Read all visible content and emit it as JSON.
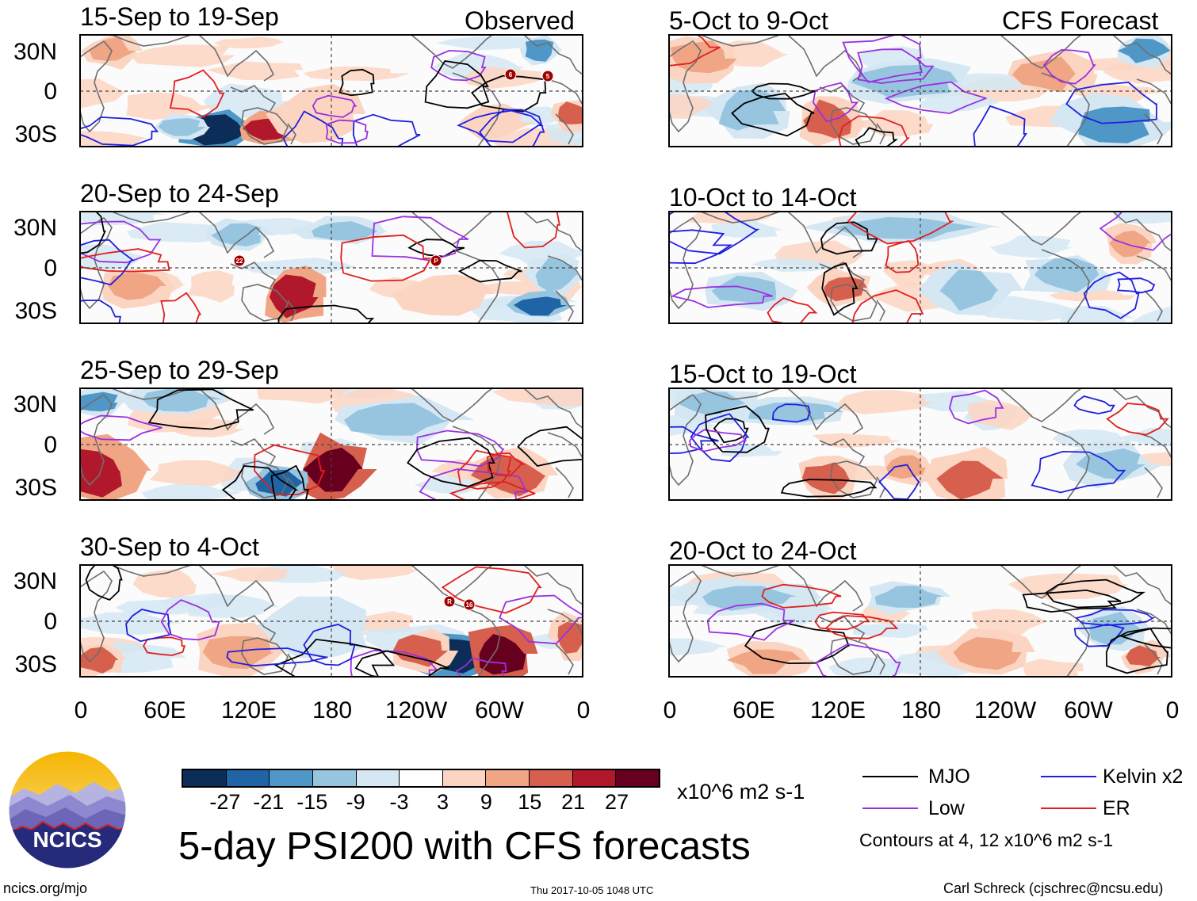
{
  "source_labels": {
    "observed": "Observed",
    "forecast": "CFS Forecast"
  },
  "panels_observed": [
    "15-Sep to 19-Sep",
    "20-Sep to 24-Sep",
    "25-Sep to 29-Sep",
    "30-Sep to 4-Oct"
  ],
  "panels_forecast": [
    "5-Oct to 9-Oct",
    "10-Oct to 14-Oct",
    "15-Oct to 19-Oct",
    "20-Oct to 24-Oct"
  ],
  "lat_labels": [
    "30N",
    "0",
    "30S"
  ],
  "lon_labels": [
    "0",
    "60E",
    "120E",
    "180",
    "120W",
    "60W",
    "0"
  ],
  "storm_markers": {
    "p1": [
      "6",
      "5"
    ],
    "p2": [
      "22",
      "P"
    ],
    "p4": [
      "R",
      "16"
    ]
  },
  "colorbar": {
    "colors": [
      "#0b2d57",
      "#1f64a5",
      "#4f97c7",
      "#97c5e0",
      "#d4e7f3",
      "#ffffff",
      "#fbd5c2",
      "#f0a584",
      "#d6604d",
      "#b2182b",
      "#67001f"
    ],
    "ticks": [
      "-27",
      "-21",
      "-15",
      "-9",
      "-3",
      "3",
      "9",
      "15",
      "21",
      "27"
    ],
    "units": "x10^6 m2 s-1"
  },
  "legend": {
    "items": [
      {
        "label": "MJO",
        "color": "#000000"
      },
      {
        "label": "Kelvin x2",
        "color": "#1f1fe0"
      },
      {
        "label": "Low",
        "color": "#9b30e0"
      },
      {
        "label": "ER",
        "color": "#e01f1f"
      }
    ],
    "contours_note": "Contours at 4, 12 x10^6 m2 s-1"
  },
  "logo_text": "NCICS",
  "title": "5-day PSI200 with CFS forecasts",
  "footer": {
    "url": "ncics.org/mjo",
    "timestamp": "Thu 2017-10-05 1048 UTC",
    "credit": "Carl Schreck (cjschrec@ncsu.edu)"
  }
}
